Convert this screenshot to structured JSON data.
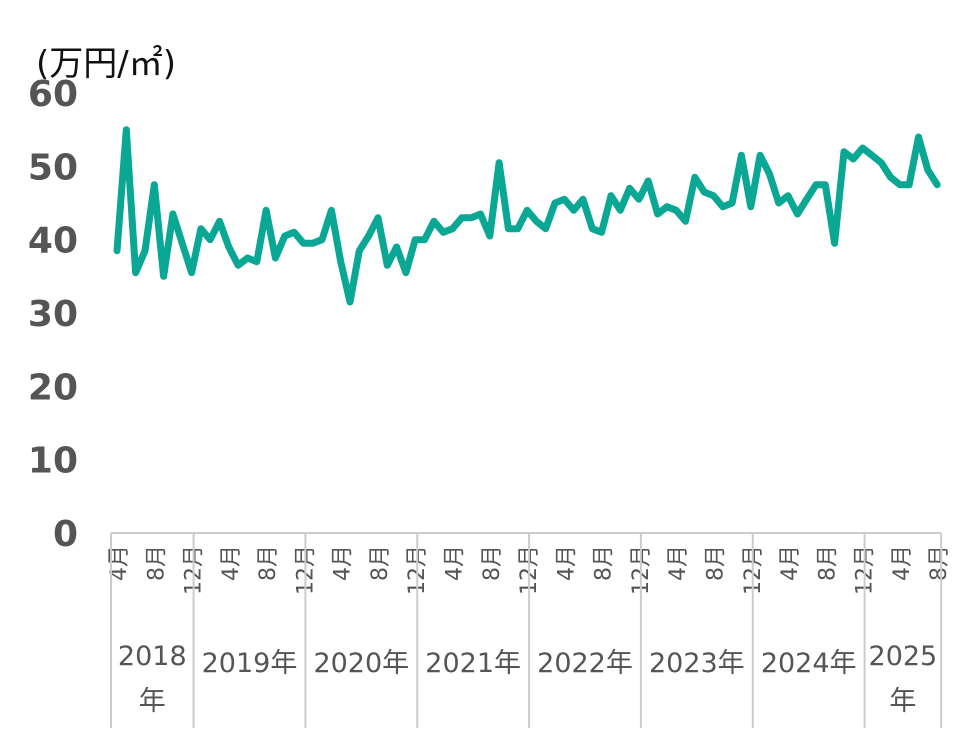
{
  "chart_data": {
    "type": "line",
    "title": "",
    "ylabel": "(万円/㎡)",
    "xlabel": "",
    "ylim": [
      0,
      60
    ],
    "y_ticks": [
      0,
      10,
      20,
      30,
      40,
      50,
      60
    ],
    "grid": false,
    "legend": "none",
    "month_ticks": [
      "4月",
      "8月",
      "12月",
      "4月",
      "8月",
      "12月",
      "4月",
      "8月",
      "12月",
      "4月",
      "8月",
      "12月",
      "4月",
      "8月",
      "12月",
      "4月",
      "8月",
      "12月",
      "4月",
      "8月",
      "12月",
      "4月",
      "8月",
      "12月",
      "4月",
      "8月"
    ],
    "year_labels": [
      "2018年",
      "2019年",
      "2020年",
      "2021年",
      "2022年",
      "2023年",
      "2024年",
      "2025年"
    ],
    "x_start": "2018-04",
    "x_end": "2025-08",
    "series": [
      {
        "color": "#0aa894",
        "x": [
          "2018-04",
          "2018-05",
          "2018-06",
          "2018-07",
          "2018-08",
          "2018-09",
          "2018-10",
          "2018-11",
          "2018-12",
          "2019-01",
          "2019-02",
          "2019-03",
          "2019-04",
          "2019-05",
          "2019-06",
          "2019-07",
          "2019-08",
          "2019-09",
          "2019-10",
          "2019-11",
          "2019-12",
          "2020-01",
          "2020-02",
          "2020-03",
          "2020-04",
          "2020-05",
          "2020-06",
          "2020-07",
          "2020-08",
          "2020-09",
          "2020-10",
          "2020-11",
          "2020-12",
          "2021-01",
          "2021-02",
          "2021-03",
          "2021-04",
          "2021-05",
          "2021-06",
          "2021-07",
          "2021-08",
          "2021-09",
          "2021-10",
          "2021-11",
          "2021-12",
          "2022-01",
          "2022-02",
          "2022-03",
          "2022-04",
          "2022-05",
          "2022-06",
          "2022-07",
          "2022-08",
          "2022-09",
          "2022-10",
          "2022-11",
          "2022-12",
          "2023-01",
          "2023-02",
          "2023-03",
          "2023-04",
          "2023-05",
          "2023-06",
          "2023-07",
          "2023-08",
          "2023-09",
          "2023-10",
          "2023-11",
          "2023-12",
          "2024-01",
          "2024-02",
          "2024-03",
          "2024-04",
          "2024-05",
          "2024-06",
          "2024-07",
          "2024-08",
          "2024-09",
          "2024-10",
          "2024-11",
          "2024-12",
          "2025-01",
          "2025-02",
          "2025-03",
          "2025-04",
          "2025-05",
          "2025-06",
          "2025-07",
          "2025-08"
        ],
        "values": [
          38.5,
          55.0,
          35.5,
          38.5,
          47.5,
          35.0,
          43.5,
          39.5,
          35.5,
          41.5,
          40.0,
          42.5,
          39.0,
          36.5,
          37.5,
          37.0,
          44.0,
          37.5,
          40.5,
          41.0,
          39.5,
          39.5,
          40.0,
          44.0,
          37.0,
          31.5,
          38.5,
          40.5,
          43.0,
          36.5,
          39.0,
          35.5,
          40.0,
          40.0,
          42.5,
          41.0,
          41.5,
          43.0,
          43.0,
          43.5,
          40.5,
          50.5,
          41.5,
          41.5,
          44.0,
          42.5,
          41.5,
          45.0,
          45.5,
          44.0,
          45.5,
          41.5,
          41.0,
          46.0,
          44.0,
          47.0,
          45.5,
          48.0,
          43.5,
          44.5,
          44.0,
          42.5,
          48.5,
          46.5,
          46.0,
          44.5,
          45.0,
          51.5,
          44.5,
          51.5,
          49.0,
          45.0,
          46.0,
          43.5,
          45.5,
          47.5,
          47.5,
          39.5,
          52.0,
          51.0,
          52.5,
          51.5,
          50.5,
          48.5,
          47.5,
          47.5,
          54.0,
          49.5,
          47.5
        ]
      }
    ]
  }
}
